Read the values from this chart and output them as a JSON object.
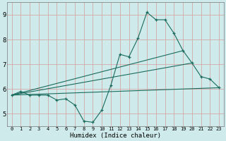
{
  "xlabel": "Humidex (Indice chaleur)",
  "bg_color": "#ceeaea",
  "grid_color_v": "#d4a8a8",
  "grid_color_h": "#c8d8d8",
  "line_color": "#1a6b5e",
  "xlim": [
    -0.5,
    23.5
  ],
  "ylim": [
    4.5,
    9.5
  ],
  "xticks": [
    0,
    1,
    2,
    3,
    4,
    5,
    6,
    7,
    8,
    9,
    10,
    11,
    12,
    13,
    14,
    15,
    16,
    17,
    18,
    19,
    20,
    21,
    22,
    23
  ],
  "yticks": [
    5,
    6,
    7,
    8,
    9
  ],
  "line1_x": [
    0,
    1,
    2,
    3,
    4,
    5,
    6,
    7,
    8,
    9,
    10,
    11,
    12,
    13,
    14,
    15,
    16,
    17,
    18,
    19,
    20,
    21,
    22,
    23
  ],
  "line1_y": [
    5.75,
    5.9,
    5.75,
    5.75,
    5.75,
    5.55,
    5.6,
    5.35,
    4.7,
    4.65,
    5.15,
    6.15,
    7.4,
    7.3,
    8.05,
    9.1,
    8.8,
    8.8,
    8.25,
    7.55,
    7.05,
    6.5,
    6.4,
    6.05
  ],
  "line2_x": [
    0,
    23
  ],
  "line2_y": [
    5.75,
    6.05
  ],
  "line3_x": [
    0,
    19
  ],
  "line3_y": [
    5.75,
    7.55
  ],
  "line4_x": [
    0,
    20
  ],
  "line4_y": [
    5.75,
    7.05
  ]
}
